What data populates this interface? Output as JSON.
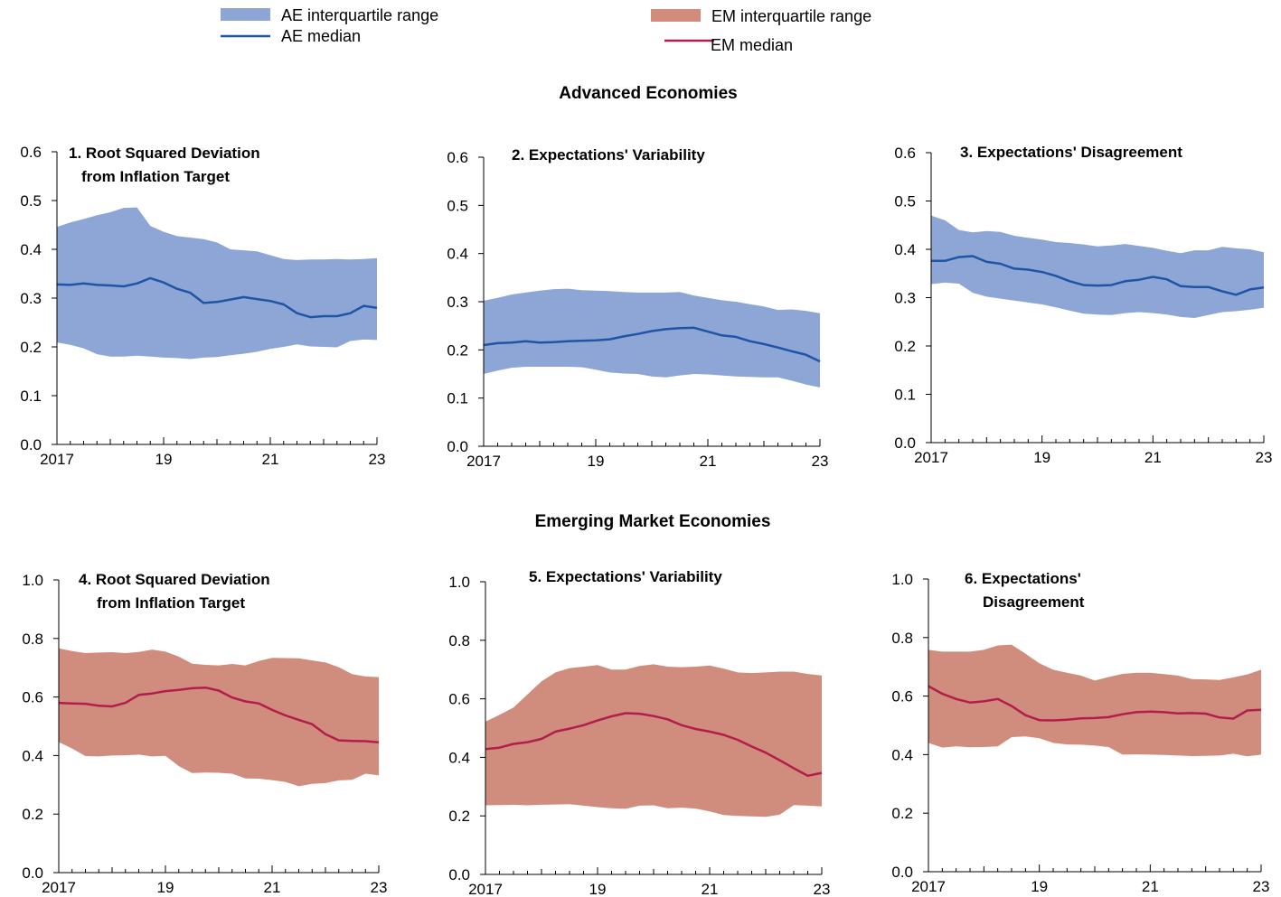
{
  "legend": {
    "ae_iqr": "AE interquartile range",
    "ae_median": "AE median",
    "em_iqr": "EM interquartile range",
    "em_median": "EM median"
  },
  "colors": {
    "ae_band": "#8da6d6",
    "ae_line": "#1f55a6",
    "em_band": "#d08c7d",
    "em_line": "#b21e4b"
  },
  "sections": {
    "advanced": "Advanced Economies",
    "emerging": "Emerging Market Economies"
  },
  "chart_data": [
    {
      "type": "area",
      "title_lines": [
        "1. Root Squared Deviation",
        "from Inflation Target"
      ],
      "group": "AE",
      "xlim": [
        2017,
        2023
      ],
      "x_ticks": [
        2017,
        2019,
        2021,
        2023
      ],
      "x_tick_labels": [
        "2017",
        "19",
        "21",
        "23"
      ],
      "ylim": [
        0,
        0.6
      ],
      "y_ticks": [
        0,
        0.1,
        0.2,
        0.3,
        0.4,
        0.5,
        0.6
      ],
      "y_tick_labels": [
        "0.0",
        "0.1",
        "0.2",
        "0.3",
        "0.4",
        "0.5",
        "0.6"
      ],
      "x": [
        2017.0,
        2017.25,
        2017.5,
        2017.75,
        2018.0,
        2018.25,
        2018.5,
        2018.75,
        2019.0,
        2019.25,
        2019.5,
        2019.75,
        2020.0,
        2020.25,
        2020.5,
        2020.75,
        2021.0,
        2021.25,
        2021.5,
        2021.75,
        2022.0,
        2022.25,
        2022.5,
        2022.75,
        2023.0
      ],
      "upper": [
        0.446,
        0.455,
        0.462,
        0.47,
        0.476,
        0.485,
        0.486,
        0.448,
        0.436,
        0.427,
        0.424,
        0.421,
        0.414,
        0.4,
        0.398,
        0.396,
        0.388,
        0.38,
        0.378,
        0.379,
        0.379,
        0.38,
        0.379,
        0.38,
        0.382
      ],
      "lower": [
        0.209,
        0.204,
        0.197,
        0.185,
        0.18,
        0.18,
        0.182,
        0.18,
        0.178,
        0.177,
        0.175,
        0.178,
        0.179,
        0.183,
        0.186,
        0.19,
        0.196,
        0.2,
        0.205,
        0.201,
        0.2,
        0.199,
        0.212,
        0.215,
        0.214
      ],
      "median": [
        0.328,
        0.327,
        0.33,
        0.327,
        0.326,
        0.324,
        0.33,
        0.341,
        0.332,
        0.319,
        0.311,
        0.29,
        0.292,
        0.297,
        0.302,
        0.298,
        0.294,
        0.287,
        0.269,
        0.261,
        0.263,
        0.263,
        0.269,
        0.284,
        0.28
      ]
    },
    {
      "type": "area",
      "title_lines": [
        "2. Expectations' Variability"
      ],
      "group": "AE",
      "xlim": [
        2017,
        2023
      ],
      "x_ticks": [
        2017,
        2019,
        2021,
        2023
      ],
      "x_tick_labels": [
        "2017",
        "19",
        "21",
        "23"
      ],
      "ylim": [
        0,
        0.6
      ],
      "y_ticks": [
        0,
        0.1,
        0.2,
        0.3,
        0.4,
        0.5,
        0.6
      ],
      "y_tick_labels": [
        "0.0",
        "0.1",
        "0.2",
        "0.3",
        "0.4",
        "0.5",
        "0.6"
      ],
      "x": [
        2017.0,
        2017.25,
        2017.5,
        2017.75,
        2018.0,
        2018.25,
        2018.5,
        2018.75,
        2019.0,
        2019.25,
        2019.5,
        2019.75,
        2020.0,
        2020.25,
        2020.5,
        2020.75,
        2021.0,
        2021.25,
        2021.5,
        2021.75,
        2022.0,
        2022.25,
        2022.5,
        2022.75,
        2023.0
      ],
      "upper": [
        0.302,
        0.308,
        0.315,
        0.319,
        0.323,
        0.326,
        0.327,
        0.324,
        0.323,
        0.322,
        0.32,
        0.319,
        0.319,
        0.319,
        0.32,
        0.313,
        0.308,
        0.303,
        0.3,
        0.295,
        0.29,
        0.283,
        0.284,
        0.281,
        0.276
      ],
      "lower": [
        0.15,
        0.157,
        0.163,
        0.165,
        0.165,
        0.165,
        0.165,
        0.164,
        0.159,
        0.153,
        0.151,
        0.15,
        0.145,
        0.143,
        0.147,
        0.15,
        0.149,
        0.147,
        0.145,
        0.144,
        0.143,
        0.143,
        0.136,
        0.128,
        0.122
      ],
      "median": [
        0.21,
        0.214,
        0.215,
        0.218,
        0.215,
        0.216,
        0.218,
        0.219,
        0.22,
        0.222,
        0.228,
        0.233,
        0.239,
        0.243,
        0.245,
        0.246,
        0.238,
        0.23,
        0.227,
        0.218,
        0.212,
        0.205,
        0.197,
        0.19,
        0.176
      ]
    },
    {
      "type": "area",
      "title_lines": [
        "3. Expectations' Disagreement"
      ],
      "group": "AE",
      "xlim": [
        2017,
        2023
      ],
      "x_ticks": [
        2017,
        2019,
        2021,
        2023
      ],
      "x_tick_labels": [
        "2017",
        "19",
        "21",
        "23"
      ],
      "ylim": [
        0,
        0.6
      ],
      "y_ticks": [
        0,
        0.1,
        0.2,
        0.3,
        0.4,
        0.5,
        0.6
      ],
      "y_tick_labels": [
        "0.0",
        "0.1",
        "0.2",
        "0.3",
        "0.4",
        "0.5",
        "0.6"
      ],
      "x": [
        2017.0,
        2017.25,
        2017.5,
        2017.75,
        2018.0,
        2018.25,
        2018.5,
        2018.75,
        2019.0,
        2019.25,
        2019.5,
        2019.75,
        2020.0,
        2020.25,
        2020.5,
        2020.75,
        2021.0,
        2021.25,
        2021.5,
        2021.75,
        2022.0,
        2022.25,
        2022.5,
        2022.75,
        2023.0
      ],
      "upper": [
        0.47,
        0.46,
        0.44,
        0.435,
        0.438,
        0.436,
        0.428,
        0.424,
        0.42,
        0.415,
        0.413,
        0.41,
        0.406,
        0.408,
        0.411,
        0.407,
        0.403,
        0.397,
        0.392,
        0.398,
        0.398,
        0.405,
        0.402,
        0.4,
        0.394
      ],
      "lower": [
        0.328,
        0.331,
        0.329,
        0.31,
        0.302,
        0.298,
        0.294,
        0.29,
        0.286,
        0.28,
        0.273,
        0.267,
        0.265,
        0.264,
        0.268,
        0.27,
        0.268,
        0.265,
        0.26,
        0.258,
        0.264,
        0.27,
        0.272,
        0.275,
        0.279
      ],
      "median": [
        0.376,
        0.376,
        0.384,
        0.386,
        0.374,
        0.37,
        0.36,
        0.358,
        0.353,
        0.345,
        0.334,
        0.326,
        0.325,
        0.326,
        0.334,
        0.337,
        0.343,
        0.338,
        0.324,
        0.322,
        0.322,
        0.313,
        0.306,
        0.317,
        0.321
      ]
    },
    {
      "type": "area",
      "title_lines": [
        "4. Root Squared Deviation",
        "from Inflation Target"
      ],
      "group": "EM",
      "xlim": [
        2017,
        2023
      ],
      "x_ticks": [
        2017,
        2019,
        2021,
        2023
      ],
      "x_tick_labels": [
        "2017",
        "19",
        "21",
        "23"
      ],
      "ylim": [
        0,
        1
      ],
      "y_ticks": [
        0,
        0.2,
        0.4,
        0.6,
        0.8,
        1.0
      ],
      "y_tick_labels": [
        "0.0",
        "0.2",
        "0.4",
        "0.6",
        "0.8",
        "1.0"
      ],
      "x": [
        2017.0,
        2017.25,
        2017.5,
        2017.75,
        2018.0,
        2018.25,
        2018.5,
        2018.75,
        2019.0,
        2019.25,
        2019.5,
        2019.75,
        2020.0,
        2020.25,
        2020.5,
        2020.75,
        2021.0,
        2021.25,
        2021.5,
        2021.75,
        2022.0,
        2022.25,
        2022.5,
        2022.75,
        2023.0
      ],
      "upper": [
        0.766,
        0.757,
        0.75,
        0.752,
        0.753,
        0.75,
        0.754,
        0.762,
        0.755,
        0.738,
        0.714,
        0.71,
        0.708,
        0.713,
        0.708,
        0.723,
        0.734,
        0.733,
        0.732,
        0.725,
        0.718,
        0.702,
        0.678,
        0.67,
        0.668
      ],
      "lower": [
        0.446,
        0.424,
        0.398,
        0.397,
        0.4,
        0.401,
        0.403,
        0.397,
        0.399,
        0.364,
        0.34,
        0.342,
        0.341,
        0.338,
        0.322,
        0.321,
        0.316,
        0.31,
        0.295,
        0.303,
        0.306,
        0.315,
        0.317,
        0.338,
        0.332
      ],
      "median": [
        0.58,
        0.578,
        0.577,
        0.57,
        0.568,
        0.58,
        0.607,
        0.612,
        0.62,
        0.624,
        0.63,
        0.632,
        0.622,
        0.598,
        0.585,
        0.578,
        0.556,
        0.537,
        0.522,
        0.507,
        0.473,
        0.452,
        0.45,
        0.449,
        0.445
      ]
    },
    {
      "type": "area",
      "title_lines": [
        "5. Expectations' Variability"
      ],
      "group": "EM",
      "xlim": [
        2017,
        2023
      ],
      "x_ticks": [
        2017,
        2019,
        2021,
        2023
      ],
      "x_tick_labels": [
        "2017",
        "19",
        "21",
        "23"
      ],
      "ylim": [
        0,
        1
      ],
      "y_ticks": [
        0,
        0.2,
        0.4,
        0.6,
        0.8,
        1.0
      ],
      "y_tick_labels": [
        "0.0",
        "0.2",
        "0.4",
        "0.6",
        "0.8",
        "1.0"
      ],
      "x": [
        2017.0,
        2017.25,
        2017.5,
        2017.75,
        2018.0,
        2018.25,
        2018.5,
        2018.75,
        2019.0,
        2019.25,
        2019.5,
        2019.75,
        2020.0,
        2020.25,
        2020.5,
        2020.75,
        2021.0,
        2021.25,
        2021.5,
        2021.75,
        2022.0,
        2022.25,
        2022.5,
        2022.75,
        2023.0
      ],
      "upper": [
        0.522,
        0.545,
        0.57,
        0.615,
        0.66,
        0.69,
        0.705,
        0.71,
        0.715,
        0.7,
        0.7,
        0.712,
        0.718,
        0.71,
        0.708,
        0.71,
        0.714,
        0.703,
        0.69,
        0.688,
        0.69,
        0.693,
        0.693,
        0.685,
        0.68
      ],
      "lower": [
        0.236,
        0.237,
        0.238,
        0.236,
        0.238,
        0.239,
        0.24,
        0.235,
        0.23,
        0.226,
        0.224,
        0.235,
        0.236,
        0.226,
        0.228,
        0.225,
        0.215,
        0.203,
        0.2,
        0.198,
        0.197,
        0.204,
        0.237,
        0.235,
        0.232
      ],
      "median": [
        0.428,
        0.433,
        0.446,
        0.452,
        0.463,
        0.488,
        0.498,
        0.51,
        0.526,
        0.54,
        0.551,
        0.549,
        0.541,
        0.53,
        0.51,
        0.497,
        0.488,
        0.477,
        0.46,
        0.437,
        0.416,
        0.39,
        0.363,
        0.337,
        0.347
      ]
    },
    {
      "type": "area",
      "title_lines": [
        "6. Expectations'",
        "Disagreement"
      ],
      "group": "EM",
      "xlim": [
        2017,
        2023
      ],
      "x_ticks": [
        2017,
        2019,
        2021,
        2023
      ],
      "x_tick_labels": [
        "2017",
        "19",
        "21",
        "23"
      ],
      "ylim": [
        0,
        1
      ],
      "y_ticks": [
        0,
        0.2,
        0.4,
        0.6,
        0.8,
        1.0
      ],
      "y_tick_labels": [
        "0.0",
        "0.2",
        "0.4",
        "0.6",
        "0.8",
        "1.0"
      ],
      "x": [
        2017.0,
        2017.25,
        2017.5,
        2017.75,
        2018.0,
        2018.25,
        2018.5,
        2018.75,
        2019.0,
        2019.25,
        2019.5,
        2019.75,
        2020.0,
        2020.25,
        2020.5,
        2020.75,
        2021.0,
        2021.25,
        2021.5,
        2021.75,
        2022.0,
        2022.25,
        2022.5,
        2022.75,
        2023.0
      ],
      "upper": [
        0.758,
        0.752,
        0.752,
        0.752,
        0.758,
        0.773,
        0.776,
        0.745,
        0.712,
        0.69,
        0.68,
        0.67,
        0.653,
        0.665,
        0.676,
        0.68,
        0.68,
        0.675,
        0.67,
        0.658,
        0.657,
        0.655,
        0.664,
        0.674,
        0.69
      ],
      "lower": [
        0.44,
        0.424,
        0.428,
        0.425,
        0.426,
        0.428,
        0.46,
        0.462,
        0.456,
        0.44,
        0.435,
        0.434,
        0.431,
        0.426,
        0.4,
        0.401,
        0.4,
        0.399,
        0.397,
        0.395,
        0.396,
        0.397,
        0.403,
        0.394,
        0.4
      ],
      "median": [
        0.634,
        0.608,
        0.59,
        0.578,
        0.582,
        0.59,
        0.566,
        0.535,
        0.518,
        0.517,
        0.519,
        0.524,
        0.525,
        0.528,
        0.538,
        0.545,
        0.547,
        0.545,
        0.541,
        0.542,
        0.54,
        0.527,
        0.523,
        0.551,
        0.553
      ]
    }
  ]
}
